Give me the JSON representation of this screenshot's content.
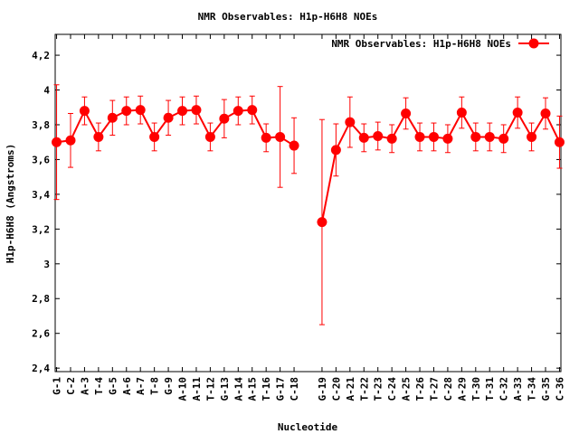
{
  "chart_data": {
    "type": "line",
    "title": "NMR Observables: H1p-H6H8 NOEs",
    "xlabel": "Nucleotide",
    "ylabel": "H1p-H6H8 (Angstroms)",
    "ylim": [
      2.38,
      4.32
    ],
    "yticks": [
      2.4,
      2.6,
      2.8,
      3,
      3.2,
      3.4,
      3.6,
      3.8,
      4,
      4.2
    ],
    "ytick_labels": [
      "2,4",
      "2,6",
      "2,8",
      "3",
      "3,2",
      "3,4",
      "3,6",
      "3,8",
      "4",
      "4,2"
    ],
    "grid": false,
    "legend_position": "top-right",
    "color": "#ff0000",
    "categories": [
      "G-1",
      "C-2",
      "A-3",
      "T-4",
      "G-5",
      "A-6",
      "A-7",
      "T-8",
      "G-9",
      "A-10",
      "A-11",
      "T-12",
      "G-13",
      "A-14",
      "A-15",
      "T-16",
      "G-17",
      "C-18",
      "G-19",
      "C-20",
      "A-21",
      "T-22",
      "T-23",
      "C-24",
      "A-25",
      "T-26",
      "T-27",
      "C-28",
      "A-29",
      "T-30",
      "T-31",
      "C-32",
      "A-33",
      "T-34",
      "G-35",
      "C-36"
    ],
    "series": [
      {
        "name": "NMR Observables: H1p-H6H8 NOEs",
        "x": [
          1,
          2,
          3,
          4,
          5,
          6,
          7,
          8,
          9,
          10,
          11,
          12,
          13,
          14,
          15,
          16,
          17,
          18,
          20,
          21,
          22,
          23,
          24,
          25,
          26,
          27,
          28,
          29,
          30,
          31,
          32,
          33,
          34,
          35,
          36,
          37
        ],
        "values": [
          3.7,
          3.71,
          3.88,
          3.73,
          3.84,
          3.88,
          3.885,
          3.73,
          3.84,
          3.88,
          3.885,
          3.73,
          3.835,
          3.88,
          3.885,
          3.725,
          3.73,
          3.68,
          3.24,
          3.655,
          3.815,
          3.725,
          3.735,
          3.72,
          3.865,
          3.73,
          3.73,
          3.72,
          3.87,
          3.73,
          3.73,
          3.72,
          3.87,
          3.73,
          3.865,
          3.7
        ],
        "errors": [
          0.33,
          0.155,
          0.08,
          0.08,
          0.1,
          0.08,
          0.08,
          0.08,
          0.1,
          0.08,
          0.08,
          0.08,
          0.11,
          0.08,
          0.08,
          0.08,
          0.29,
          0.16,
          0.59,
          0.15,
          0.145,
          0.08,
          0.08,
          0.08,
          0.09,
          0.08,
          0.08,
          0.08,
          0.09,
          0.08,
          0.08,
          0.08,
          0.09,
          0.08,
          0.09,
          0.15
        ]
      }
    ]
  }
}
